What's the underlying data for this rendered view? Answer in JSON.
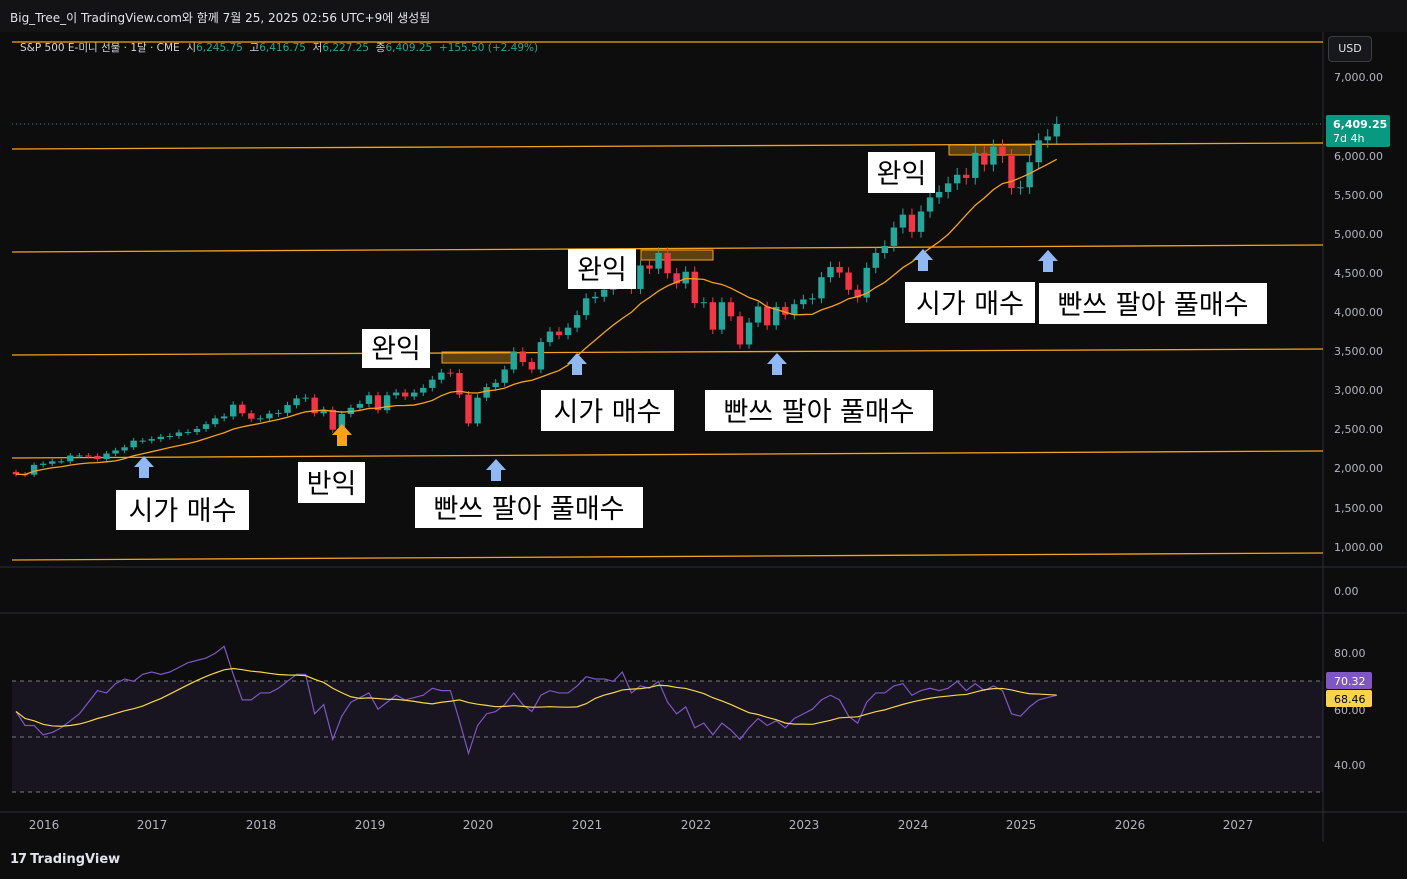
{
  "header": {
    "caption": "Big_Tree_이 TradingView.com와 함께 7월 25, 2025 02:56 UTC+9에 생성됨"
  },
  "legend": {
    "symbol": "S&P 500 E-미니 선물 · 1달 · CME",
    "open_label": "시",
    "open": "6,245.75",
    "high_label": "고",
    "high": "6,416.75",
    "low_label": "저",
    "low": "6,227.25",
    "close_label": "종",
    "close": "6,409.25",
    "change": "+155.50 (+2.49%)"
  },
  "currency": "USD",
  "price_badge": {
    "price": "6,409.25",
    "countdown": "7d 4h",
    "color": "#089981"
  },
  "rsi_badges": {
    "rsi": "70.32",
    "ma": "68.46",
    "rsi_color": "#7e57c2",
    "ma_color": "#f7d54a"
  },
  "footer": {
    "brand": "TradingView"
  },
  "colors": {
    "up": "#26a69a",
    "down": "#f23645",
    "ma": "#f7a21b",
    "hline": "#f7a21b",
    "rsi": "#7e57c2",
    "rsi_ma": "#f7d54a",
    "arrow_blue": "#8fb8f5",
    "arrow_orange": "#f7a21b"
  },
  "annotations": [
    "시가 매수",
    "반익",
    "빤쓰 팔아 풀매수",
    "완익",
    "시가 매수",
    "빤쓰 팔아 풀매수",
    "완익",
    "완익",
    "시가 매수",
    "빤쓰 팔아 풀매수"
  ],
  "chart_data": [
    {
      "type": "candlestick",
      "title": "S&P 500 E-미니 선물 · 1달 · CME",
      "x_ticks": [
        "2016",
        "2017",
        "2018",
        "2019",
        "2020",
        "2021",
        "2022",
        "2023",
        "2024",
        "2025",
        "2026",
        "2027"
      ],
      "y_ticks": [
        "1,000.00",
        "1,500.00",
        "2,000.00",
        "2,500.00",
        "3,000.00",
        "3,500.00",
        "4,000.00",
        "4,500.00",
        "5,000.00",
        "5,500.00",
        "6,000.00",
        "7,000.00",
        "0.00"
      ],
      "ylim": [
        850,
        7400
      ],
      "series_close_approx": {
        "start": "2016-01",
        "values": [
          1930,
          1925,
          2050,
          2065,
          2095,
          2095,
          2170,
          2170,
          2165,
          2125,
          2195,
          2235,
          2275,
          2360,
          2360,
          2380,
          2410,
          2420,
          2465,
          2470,
          2510,
          2570,
          2645,
          2670,
          2820,
          2710,
          2640,
          2645,
          2705,
          2715,
          2815,
          2900,
          2910,
          2710,
          2755,
          2500,
          2700,
          2780,
          2830,
          2940,
          2750,
          2940,
          2975,
          2925,
          2975,
          3035,
          3140,
          3230,
          3225,
          2950,
          2580,
          2910,
          3045,
          3100,
          3270,
          3500,
          3365,
          3270,
          3620,
          3755,
          3710,
          3805,
          3965,
          4180,
          4200,
          4290,
          4400,
          4520,
          4300,
          4600,
          4560,
          4760,
          4500,
          4370,
          4520,
          4120,
          4130,
          3780,
          4130,
          3950,
          3590,
          3870,
          4075,
          3835,
          4070,
          3970,
          4105,
          4165,
          4180,
          4450,
          4580,
          4510,
          4290,
          4190,
          4570,
          4760,
          4850,
          5085,
          5250,
          5030,
          5290,
          5470,
          5540,
          5650,
          5760,
          5720,
          6040,
          5890,
          6120,
          6000,
          5590,
          5600,
          5920,
          6200,
          6250,
          6409
        ]
      },
      "ma_line": "moving average (orange)",
      "horizontal_levels": [
        2180,
        3520,
        4810,
        6120,
        880,
        7350
      ],
      "box_zones": [
        {
          "from": "2019-09",
          "to": "2020-02",
          "low": 3330,
          "high": 3450
        },
        {
          "from": "2021-08",
          "to": "2022-01",
          "low": 4640,
          "high": 4780
        },
        {
          "from": "2024-04",
          "to": "2024-12",
          "low": 6030,
          "high": 6160
        }
      ],
      "last": 6409.25
    },
    {
      "type": "line",
      "title": "RSI",
      "y_ticks": [
        "80.00",
        "60.00",
        "40.00"
      ],
      "ylim": [
        30,
        90
      ],
      "series": [
        {
          "values_approx": [
            63,
            57,
            57,
            53,
            54,
            56,
            59,
            62,
            67,
            72,
            71,
            75,
            77,
            76,
            79,
            80,
            79,
            80,
            82,
            84,
            85,
            86,
            88,
            91,
            79,
            68,
            68,
            71,
            71,
            73,
            76,
            79,
            79,
            62,
            66,
            51,
            61,
            67,
            69,
            71,
            64,
            67,
            70,
            68,
            69,
            70,
            73,
            72,
            72,
            59,
            45,
            57,
            62,
            63,
            66,
            71,
            66,
            63,
            70,
            72,
            71,
            71,
            74,
            78,
            77,
            77,
            76,
            80,
            71,
            74,
            73,
            76,
            67,
            62,
            65,
            56,
            58,
            53,
            58,
            55,
            51,
            56,
            60,
            57,
            59,
            56,
            60,
            62,
            64,
            68,
            70,
            68,
            61,
            58,
            67,
            71,
            71,
            74,
            75,
            70,
            72,
            73,
            72,
            73,
            76,
            72,
            75,
            72,
            74,
            72,
            62,
            61,
            65,
            68,
            69,
            70
          ]
        }
      ],
      "ma_series": "RSI moving average (yellow)",
      "band": [
        30,
        70
      ],
      "last": 70.32,
      "ma_last": 68.46
    }
  ]
}
